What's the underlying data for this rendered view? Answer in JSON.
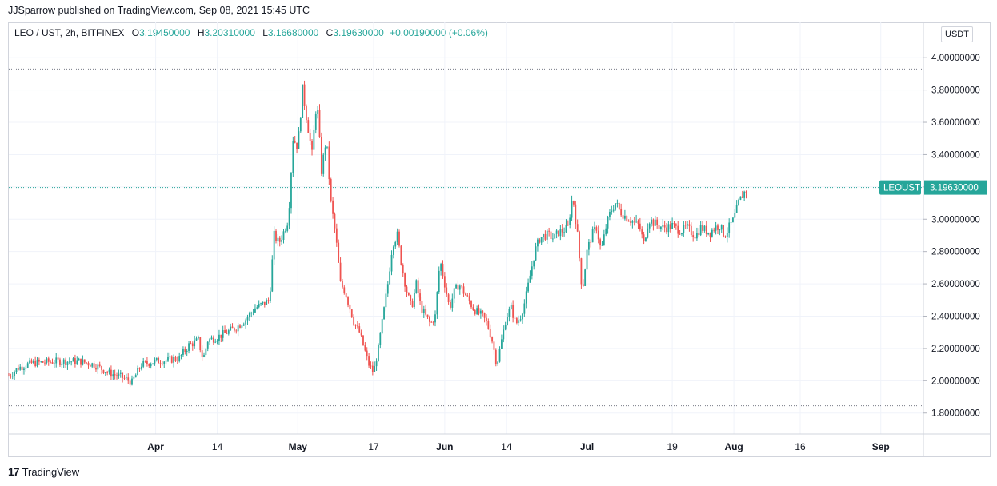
{
  "header": {
    "publisher": "JJSparrow published on TradingView.com, Sep 08, 2021 15:45 UTC"
  },
  "legend": {
    "symbol": "LEO / UST, 2h, BITFINEX",
    "open_label": "O",
    "open": "3.19450000",
    "high_label": "H",
    "high": "3.20310000",
    "low_label": "L",
    "low": "3.16680000",
    "close_label": "C",
    "close": "3.19630000",
    "change": "+0.00190000 (+0.06%)"
  },
  "currency_button": "USDT",
  "price_tag": {
    "ticker": "LEOUST",
    "price": "3.19630000"
  },
  "footer": {
    "brand": "TradingView",
    "logo": "17"
  },
  "colors": {
    "up": "#26a69a",
    "down": "#ef5350",
    "grid": "#f0f3fa",
    "dotted": "#787b86"
  },
  "chart_data": {
    "type": "candlestick",
    "y_axis": {
      "ticks": [
        1.8,
        2.0,
        2.2,
        2.4,
        2.6,
        2.8,
        3.0,
        3.2,
        3.4,
        3.6,
        3.8,
        4.0
      ],
      "tick_labels": [
        "1.80000000",
        "2.00000000",
        "2.20000000",
        "2.40000000",
        "2.60000000",
        "2.80000000",
        "3.00000000",
        "3.20000000",
        "3.40000000",
        "3.60000000",
        "3.80000000",
        "4.00000000"
      ],
      "range": [
        1.67,
        4.1
      ]
    },
    "x_axis": {
      "tick_labels": [
        "Apr",
        "14",
        "May",
        "17",
        "Jun",
        "14",
        "Jul",
        "19",
        "Aug",
        "16",
        "Sep"
      ],
      "tick_days": [
        31,
        44,
        61,
        77,
        92,
        105,
        122,
        140,
        153,
        167,
        184
      ],
      "start_date": "2021-03-01",
      "range_days": [
        0,
        193
      ]
    },
    "horizontal_lines": [
      {
        "value": 3.93,
        "style": "dotted"
      },
      {
        "value": 1.845,
        "style": "dotted"
      },
      {
        "value": 3.1963,
        "style": "dotted-teal"
      }
    ],
    "price_path": [
      [
        0,
        2.03
      ],
      [
        2,
        2.08
      ],
      [
        5,
        2.11
      ],
      [
        10,
        2.12
      ],
      [
        15,
        2.12
      ],
      [
        18,
        2.1
      ],
      [
        21,
        2.05
      ],
      [
        24,
        2.02
      ],
      [
        26,
        1.99
      ],
      [
        28,
        2.1
      ],
      [
        31,
        2.12
      ],
      [
        34,
        2.13
      ],
      [
        36,
        2.14
      ],
      [
        38,
        2.22
      ],
      [
        40,
        2.25
      ],
      [
        41,
        2.13
      ],
      [
        42,
        2.25
      ],
      [
        44,
        2.27
      ],
      [
        46,
        2.3
      ],
      [
        48,
        2.33
      ],
      [
        50,
        2.38
      ],
      [
        52,
        2.45
      ],
      [
        54,
        2.48
      ],
      [
        55,
        2.5
      ],
      [
        56,
        2.9
      ],
      [
        57,
        2.85
      ],
      [
        58,
        2.92
      ],
      [
        59,
        3.0
      ],
      [
        60,
        3.5
      ],
      [
        61,
        3.45
      ],
      [
        62,
        3.8
      ],
      [
        63,
        3.6
      ],
      [
        64,
        3.4
      ],
      [
        65,
        3.75
      ],
      [
        66,
        3.3
      ],
      [
        67,
        3.5
      ],
      [
        68,
        3.1
      ],
      [
        69,
        2.9
      ],
      [
        70,
        2.6
      ],
      [
        71,
        2.55
      ],
      [
        72,
        2.45
      ],
      [
        73,
        2.35
      ],
      [
        74,
        2.3
      ],
      [
        75,
        2.2
      ],
      [
        76,
        2.1
      ],
      [
        77,
        2.05
      ],
      [
        78,
        2.2
      ],
      [
        79,
        2.4
      ],
      [
        80,
        2.6
      ],
      [
        81,
        2.85
      ],
      [
        82,
        2.9
      ],
      [
        83,
        2.7
      ],
      [
        84,
        2.55
      ],
      [
        85,
        2.45
      ],
      [
        86,
        2.6
      ],
      [
        87,
        2.45
      ],
      [
        88,
        2.4
      ],
      [
        89,
        2.35
      ],
      [
        90,
        2.4
      ],
      [
        91,
        2.75
      ],
      [
        92,
        2.6
      ],
      [
        93,
        2.45
      ],
      [
        94,
        2.55
      ],
      [
        95,
        2.6
      ],
      [
        96,
        2.55
      ],
      [
        97,
        2.5
      ],
      [
        98,
        2.45
      ],
      [
        99,
        2.42
      ],
      [
        100,
        2.4
      ],
      [
        101,
        2.35
      ],
      [
        102,
        2.25
      ],
      [
        103,
        2.1
      ],
      [
        104,
        2.25
      ],
      [
        105,
        2.4
      ],
      [
        106,
        2.45
      ],
      [
        107,
        2.35
      ],
      [
        108,
        2.4
      ],
      [
        109,
        2.5
      ],
      [
        110,
        2.65
      ],
      [
        111,
        2.8
      ],
      [
        112,
        2.88
      ],
      [
        113,
        2.9
      ],
      [
        114,
        2.9
      ],
      [
        115,
        2.88
      ],
      [
        116,
        2.92
      ],
      [
        117,
        2.93
      ],
      [
        118,
        2.95
      ],
      [
        119,
        3.15
      ],
      [
        120,
        2.9
      ],
      [
        121,
        2.55
      ],
      [
        122,
        2.8
      ],
      [
        123,
        2.9
      ],
      [
        124,
        2.95
      ],
      [
        125,
        2.8
      ],
      [
        126,
        2.95
      ],
      [
        127,
        3.05
      ],
      [
        128,
        3.1
      ],
      [
        129,
        3.05
      ],
      [
        130,
        3.02
      ],
      [
        131,
        3.0
      ],
      [
        132,
        2.98
      ],
      [
        133,
        2.96
      ],
      [
        134,
        2.85
      ],
      [
        135,
        3.0
      ],
      [
        136,
        2.98
      ],
      [
        137,
        2.96
      ],
      [
        138,
        2.95
      ],
      [
        139,
        2.95
      ],
      [
        140,
        2.96
      ],
      [
        141,
        2.94
      ],
      [
        142,
        2.93
      ],
      [
        143,
        2.95
      ],
      [
        144,
        2.92
      ],
      [
        145,
        2.9
      ],
      [
        146,
        2.95
      ],
      [
        147,
        2.93
      ],
      [
        148,
        2.92
      ],
      [
        149,
        2.95
      ],
      [
        150,
        2.96
      ],
      [
        151,
        2.9
      ],
      [
        152,
        2.95
      ],
      [
        153,
        3.0
      ],
      [
        154,
        3.1
      ],
      [
        155,
        3.16
      ],
      [
        156,
        3.19
      ]
    ]
  }
}
